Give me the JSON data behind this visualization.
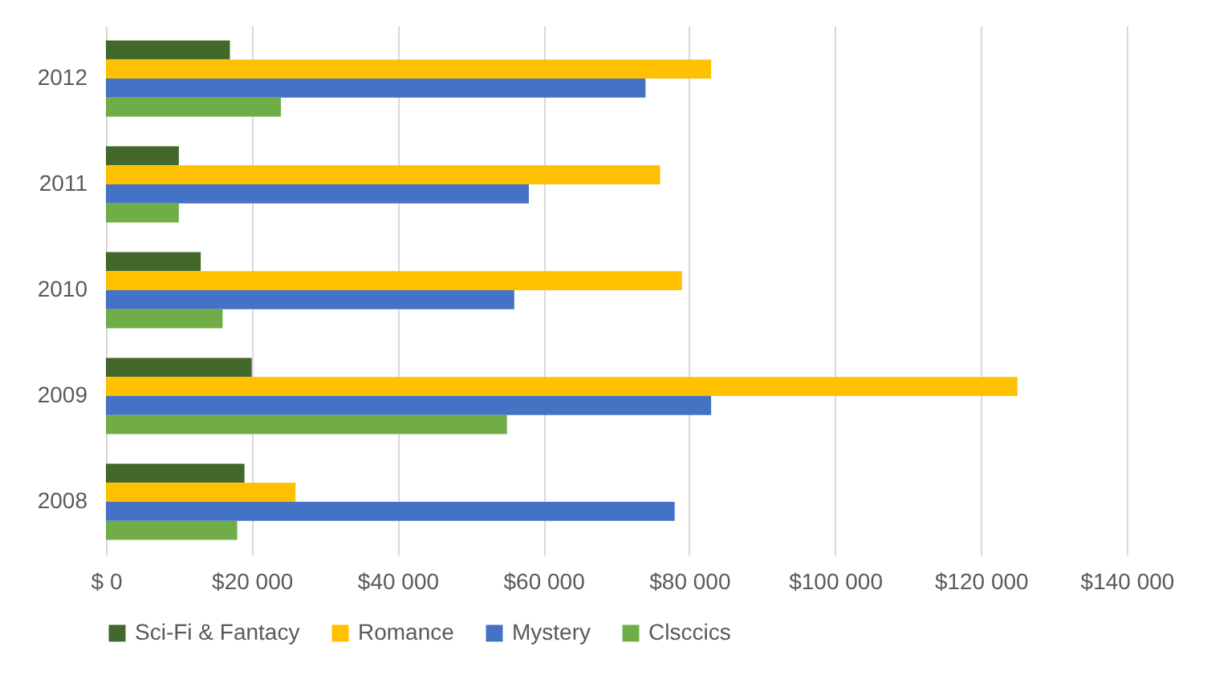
{
  "chart_data": {
    "type": "bar",
    "orientation": "horizontal",
    "categories": [
      "2012",
      "2011",
      "2010",
      "2009",
      "2008"
    ],
    "series": [
      {
        "name": "Sci-Fi & Fantacy",
        "color": "#43682b",
        "values": [
          17000,
          10000,
          13000,
          20000,
          19000
        ]
      },
      {
        "name": "Romance",
        "color": "#ffc000",
        "values": [
          83000,
          76000,
          79000,
          125000,
          26000
        ]
      },
      {
        "name": "Mystery",
        "color": "#4472c4",
        "values": [
          74000,
          58000,
          56000,
          83000,
          78000
        ]
      },
      {
        "name": "Clsccics",
        "color": "#70ad47",
        "values": [
          24000,
          10000,
          16000,
          55000,
          18000
        ]
      }
    ],
    "xlim": [
      0,
      140000
    ],
    "xticks": [
      {
        "value": 0,
        "label": "$ 0"
      },
      {
        "value": 20000,
        "label": "$20 000"
      },
      {
        "value": 40000,
        "label": "$40 000"
      },
      {
        "value": 60000,
        "label": "$60 000"
      },
      {
        "value": 80000,
        "label": "$80 000"
      },
      {
        "value": 100000,
        "label": "$100 000"
      },
      {
        "value": 120000,
        "label": "$120 000"
      },
      {
        "value": 140000,
        "label": "$140 000"
      }
    ],
    "grid": "x",
    "legend": "bottom"
  }
}
